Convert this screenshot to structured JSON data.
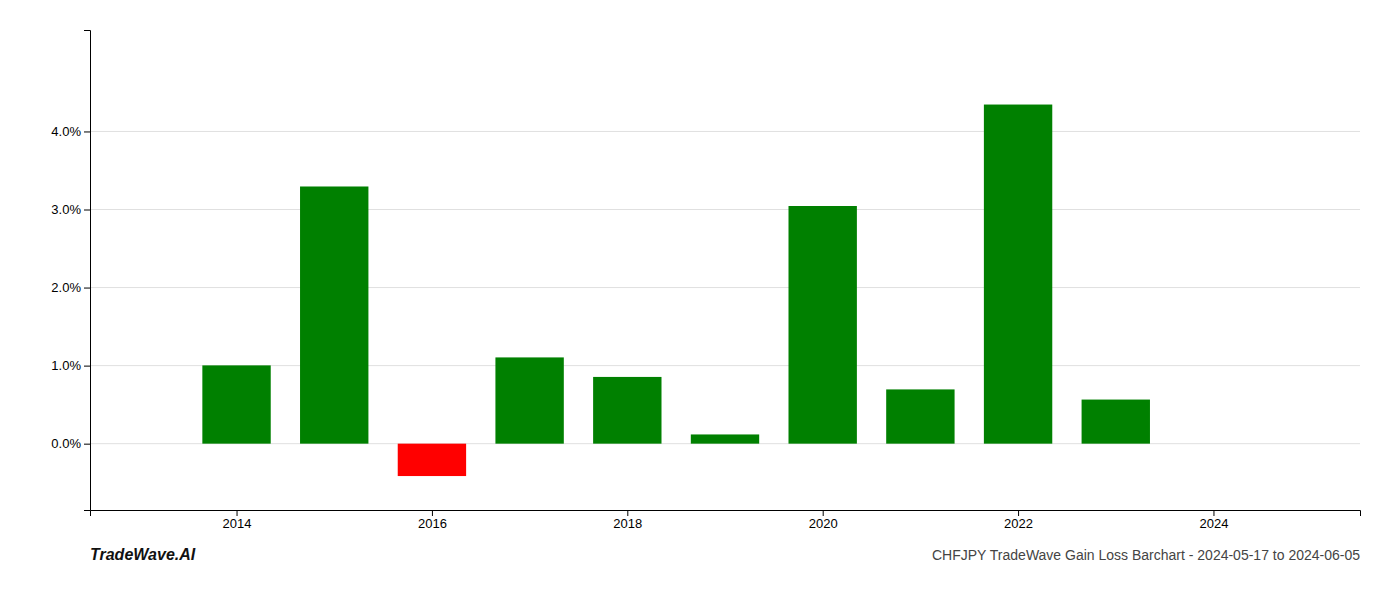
{
  "chart_data": {
    "type": "bar",
    "title": "CHFJPY TradeWave Gain Loss Barchart - 2024-05-17 to 2024-06-05",
    "annotations": [
      "TradeWave.AI"
    ],
    "x": [
      2014,
      2015,
      2016,
      2017,
      2018,
      2019,
      2020,
      2021,
      2022,
      2023
    ],
    "values": [
      0.01003,
      0.03295,
      -0.00415,
      0.01105,
      0.00855,
      0.00118,
      0.03045,
      0.00695,
      0.04345,
      0.00565
    ],
    "colors": [
      "#008000",
      "#008000",
      "#ff0000",
      "#008000",
      "#008000",
      "#008000",
      "#008000",
      "#008000",
      "#008000",
      "#008000"
    ],
    "xlim": [
      2012.5,
      2025.5
    ],
    "ylim": [
      -0.0085,
      0.053
    ],
    "xticks": [
      2014,
      2016,
      2018,
      2020,
      2022,
      2024
    ],
    "yticks": [
      {
        "value": 0.0,
        "label": "0.0%"
      },
      {
        "value": 0.01,
        "label": "1.0%"
      },
      {
        "value": 0.02,
        "label": "2.0%"
      },
      {
        "value": 0.03,
        "label": "3.0%"
      },
      {
        "value": 0.04,
        "label": "4.0%"
      }
    ],
    "grid": true
  }
}
